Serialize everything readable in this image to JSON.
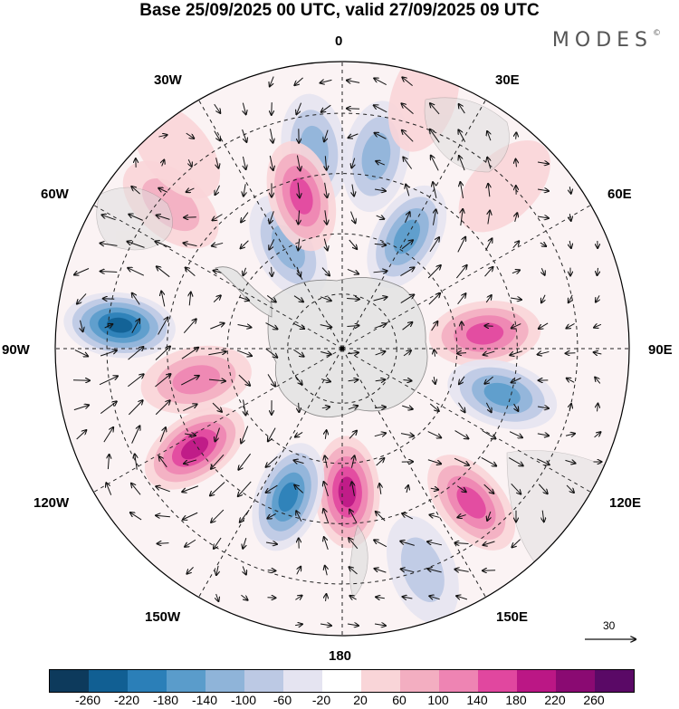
{
  "header": {
    "title": "Base 25/09/2025 00 UTC, valid 27/09/2025 09 UTC",
    "brand": "MODES",
    "brand_mark": "©"
  },
  "map": {
    "projection": "south-polar-stereographic",
    "longitude_labels": {
      "deg0": "0",
      "deg30e": "30E",
      "deg60e": "60E",
      "deg90e": "90E",
      "deg120e": "120E",
      "deg150e": "150E",
      "deg180": "180",
      "deg150w": "150W",
      "deg120w": "120W",
      "deg90w": "90W",
      "deg60w": "60W",
      "deg30w": "30W"
    },
    "field_anomalies": [
      {
        "angle_deg": 10,
        "r_frac": 0.68,
        "value": -120
      },
      {
        "angle_deg": 18,
        "r_frac": 0.92,
        "value": 40
      },
      {
        "angle_deg": 30,
        "r_frac": 0.45,
        "value": -140
      },
      {
        "angle_deg": 45,
        "r_frac": 0.8,
        "value": 40
      },
      {
        "angle_deg": 84,
        "r_frac": 0.5,
        "value": 150
      },
      {
        "angle_deg": 106,
        "r_frac": 0.58,
        "value": -160
      },
      {
        "angle_deg": 140,
        "r_frac": 0.7,
        "value": 170
      },
      {
        "angle_deg": 160,
        "r_frac": 0.82,
        "value": -60
      },
      {
        "angle_deg": 178,
        "r_frac": 0.5,
        "value": 180
      },
      {
        "angle_deg": 200,
        "r_frac": 0.55,
        "value": -200
      },
      {
        "angle_deg": 236,
        "r_frac": 0.62,
        "value": 210
      },
      {
        "angle_deg": 258,
        "r_frac": 0.52,
        "value": 100
      },
      {
        "angle_deg": 276,
        "r_frac": 0.78,
        "value": -240
      },
      {
        "angle_deg": 310,
        "r_frac": 0.78,
        "value": 60
      },
      {
        "angle_deg": 332,
        "r_frac": 0.4,
        "value": -120
      },
      {
        "angle_deg": 352,
        "r_frac": 0.7,
        "value": -130
      },
      {
        "angle_deg": 345,
        "r_frac": 0.55,
        "value": 170
      },
      {
        "angle_deg": 320,
        "r_frac": 0.9,
        "value": 40
      }
    ],
    "wind_reference": {
      "value": "30"
    }
  },
  "colorbar": {
    "ticks": [
      "-260",
      "-220",
      "-180",
      "-140",
      "-100",
      "-60",
      "-20",
      "20",
      "60",
      "100",
      "140",
      "180",
      "220",
      "260"
    ],
    "colors": [
      "#0d3a5c",
      "#115f93",
      "#2b7fb8",
      "#5a9ccb",
      "#8fb4d9",
      "#bcc9e4",
      "#e5e4f1",
      "#ffffff",
      "#f9d5d8",
      "#f3aec1",
      "#ee84b3",
      "#e1479f",
      "#bb1785",
      "#8a0a72",
      "#5a0966"
    ]
  }
}
